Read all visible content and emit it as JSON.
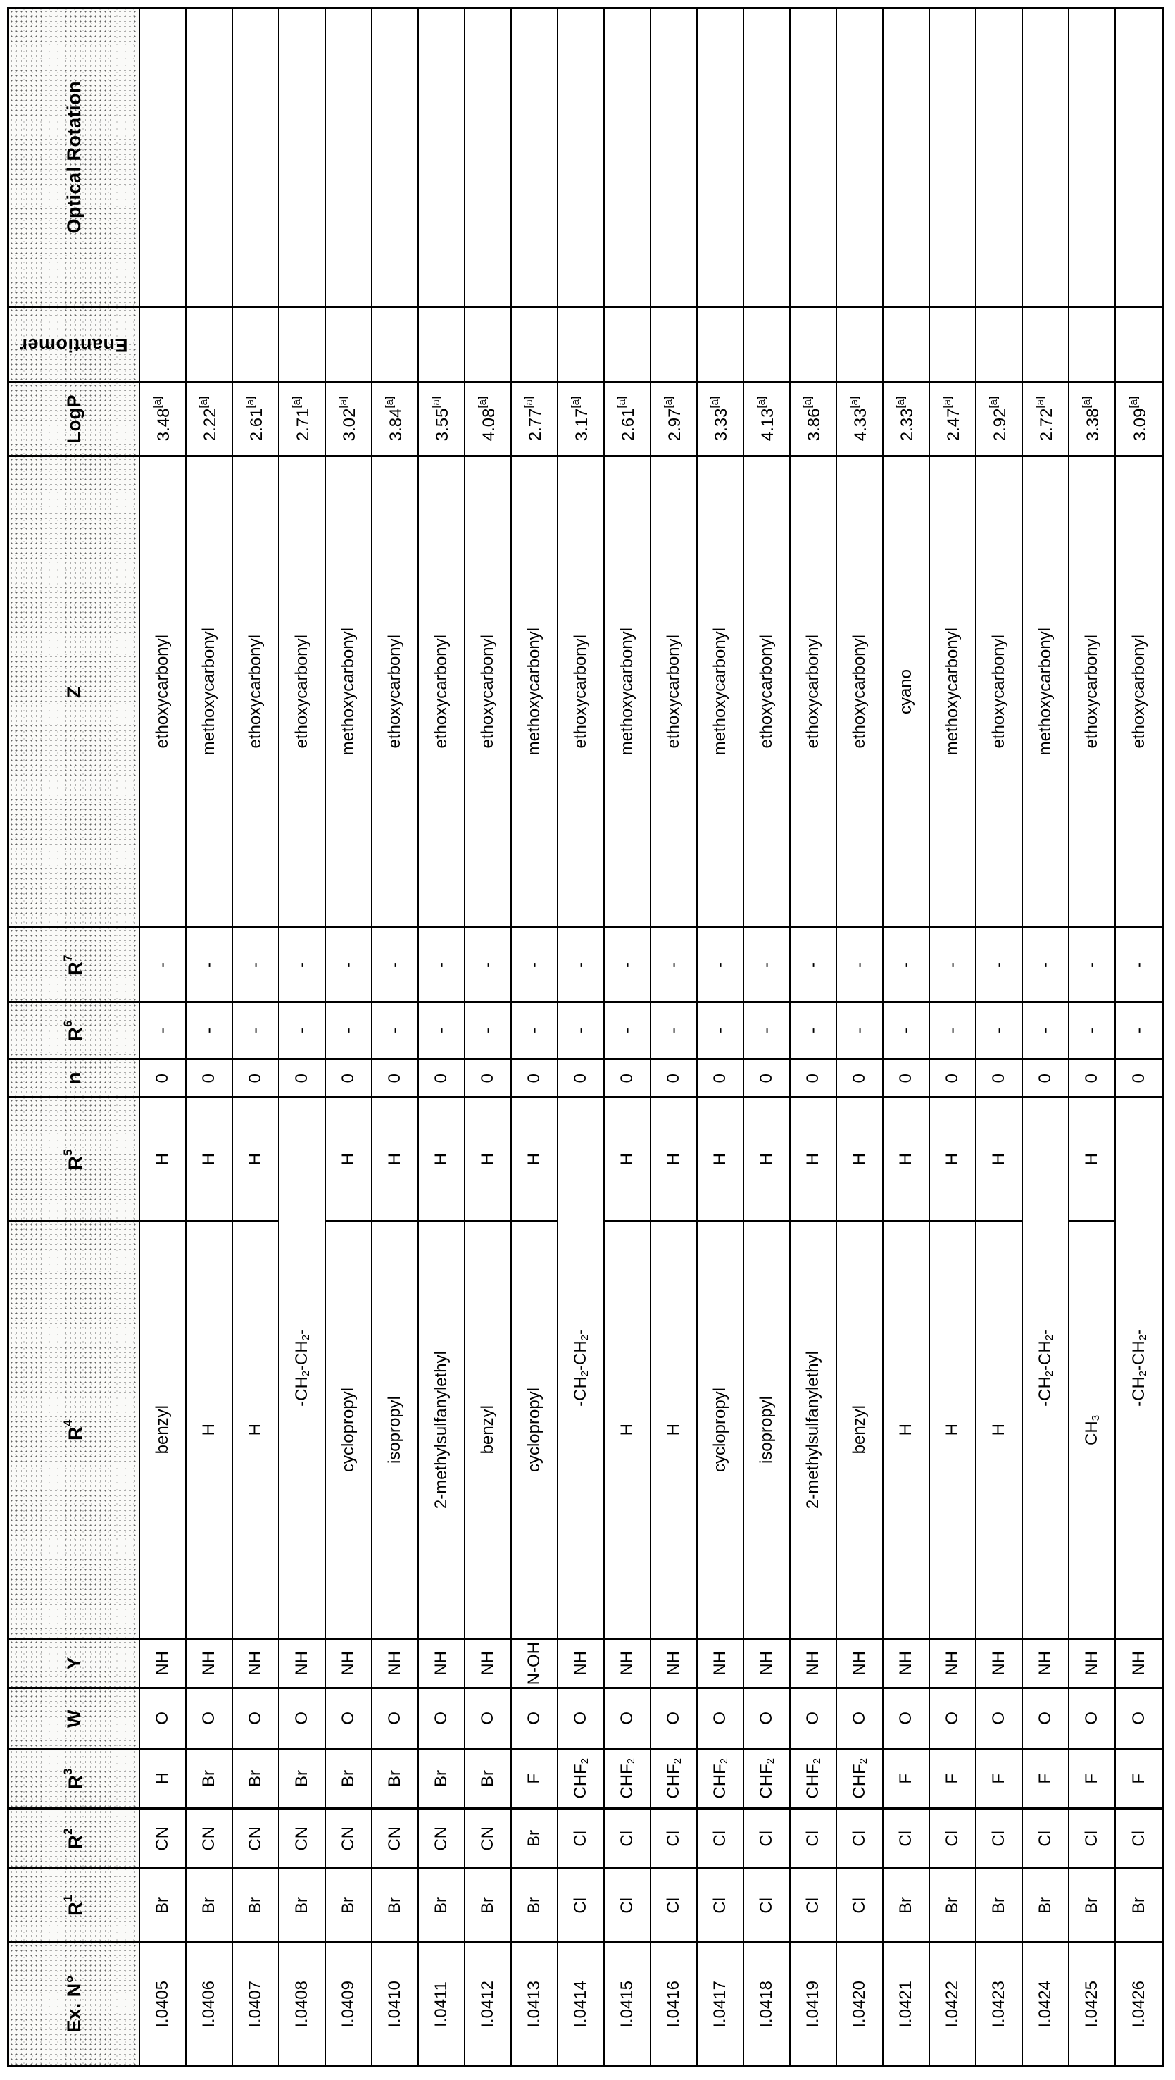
{
  "colors": {
    "line": "#000000",
    "page_background": "#ffffff",
    "header_fill": "#fafaf8"
  },
  "table": {
    "headers": [
      {
        "key": "optical",
        "label": "Optical Rotation"
      },
      {
        "key": "enantiomer",
        "label": "Enantiomer"
      },
      {
        "key": "logp",
        "label": "LogP"
      },
      {
        "key": "z",
        "label": "Z"
      },
      {
        "key": "r7",
        "label": "R^7^"
      },
      {
        "key": "r6",
        "label": "R^6^"
      },
      {
        "key": "n",
        "label": "n"
      },
      {
        "key": "r5",
        "label": "R^5^"
      },
      {
        "key": "r4",
        "label": "R^4^"
      },
      {
        "key": "y",
        "label": "Y"
      },
      {
        "key": "w",
        "label": "W"
      },
      {
        "key": "r3",
        "label": "R^3^"
      },
      {
        "key": "r2",
        "label": "R^2^"
      },
      {
        "key": "r1",
        "label": "R^1^"
      },
      {
        "key": "ex",
        "label": "Ex. N°"
      }
    ],
    "rows": [
      {
        "ex": "I.0405",
        "r1": "Br",
        "r2": "CN",
        "r3": "H",
        "w": "O",
        "y": "NH",
        "r4": "benzyl",
        "r5": "H",
        "n": "0",
        "r6": "-",
        "r7": "-",
        "z": "ethoxycarbonyl",
        "logp": "3.48^[a]^",
        "enantiomer": "",
        "optical": "",
        "r4_r5_merged": false
      },
      {
        "ex": "I.0406",
        "r1": "Br",
        "r2": "CN",
        "r3": "Br",
        "w": "O",
        "y": "NH",
        "r4": "H",
        "r5": "H",
        "n": "0",
        "r6": "-",
        "r7": "-",
        "z": "methoxycarbonyl",
        "logp": "2.22^[a]^",
        "enantiomer": "",
        "optical": "",
        "r4_r5_merged": false
      },
      {
        "ex": "I.0407",
        "r1": "Br",
        "r2": "CN",
        "r3": "Br",
        "w": "O",
        "y": "NH",
        "r4": "H",
        "r5": "H",
        "n": "0",
        "r6": "-",
        "r7": "-",
        "z": "ethoxycarbonyl",
        "logp": "2.61^[a]^",
        "enantiomer": "",
        "optical": "",
        "r4_r5_merged": false
      },
      {
        "ex": "I.0408",
        "r1": "Br",
        "r2": "CN",
        "r3": "Br",
        "w": "O",
        "y": "NH",
        "r4": "-CH~2~-CH~2~-",
        "r5": "",
        "n": "0",
        "r6": "-",
        "r7": "-",
        "z": "ethoxycarbonyl",
        "logp": "2.71^[a]^",
        "enantiomer": "",
        "optical": "",
        "r4_r5_merged": true
      },
      {
        "ex": "I.0409",
        "r1": "Br",
        "r2": "CN",
        "r3": "Br",
        "w": "O",
        "y": "NH",
        "r4": "cyclopropyl",
        "r5": "H",
        "n": "0",
        "r6": "-",
        "r7": "-",
        "z": "methoxycarbonyl",
        "logp": "3.02^[a]^",
        "enantiomer": "",
        "optical": "",
        "r4_r5_merged": false
      },
      {
        "ex": "I.0410",
        "r1": "Br",
        "r2": "CN",
        "r3": "Br",
        "w": "O",
        "y": "NH",
        "r4": "isopropyl",
        "r5": "H",
        "n": "0",
        "r6": "-",
        "r7": "-",
        "z": "ethoxycarbonyl",
        "logp": "3.84^[a]^",
        "enantiomer": "",
        "optical": "",
        "r4_r5_merged": false
      },
      {
        "ex": "I.0411",
        "r1": "Br",
        "r2": "CN",
        "r3": "Br",
        "w": "O",
        "y": "NH",
        "r4": "2-methylsulfanylethyl",
        "r5": "H",
        "n": "0",
        "r6": "-",
        "r7": "-",
        "z": "ethoxycarbonyl",
        "logp": "3.55^[a]^",
        "enantiomer": "",
        "optical": "",
        "r4_r5_merged": false
      },
      {
        "ex": "I.0412",
        "r1": "Br",
        "r2": "CN",
        "r3": "Br",
        "w": "O",
        "y": "NH",
        "r4": "benzyl",
        "r5": "H",
        "n": "0",
        "r6": "-",
        "r7": "-",
        "z": "ethoxycarbonyl",
        "logp": "4.08^[a]^",
        "enantiomer": "",
        "optical": "",
        "r4_r5_merged": false
      },
      {
        "ex": "I.0413",
        "r1": "Br",
        "r2": "Br",
        "r3": "F",
        "w": "O",
        "y": "N-OH",
        "r4": "cyclopropyl",
        "r5": "H",
        "n": "0",
        "r6": "-",
        "r7": "-",
        "z": "methoxycarbonyl",
        "logp": "2.77^[a]^",
        "enantiomer": "",
        "optical": "",
        "r4_r5_merged": false
      },
      {
        "ex": "I.0414",
        "r1": "Cl",
        "r2": "Cl",
        "r3": "CHF~2~",
        "w": "O",
        "y": "NH",
        "r4": "-CH~2~-CH~2~-",
        "r5": "",
        "n": "0",
        "r6": "-",
        "r7": "-",
        "z": "ethoxycarbonyl",
        "logp": "3.17^[a]^",
        "enantiomer": "",
        "optical": "",
        "r4_r5_merged": true
      },
      {
        "ex": "I.0415",
        "r1": "Cl",
        "r2": "Cl",
        "r3": "CHF~2~",
        "w": "O",
        "y": "NH",
        "r4": "H",
        "r5": "H",
        "n": "0",
        "r6": "-",
        "r7": "-",
        "z": "methoxycarbonyl",
        "logp": "2.61^[a]^",
        "enantiomer": "",
        "optical": "",
        "r4_r5_merged": false
      },
      {
        "ex": "I.0416",
        "r1": "Cl",
        "r2": "Cl",
        "r3": "CHF~2~",
        "w": "O",
        "y": "NH",
        "r4": "H",
        "r5": "H",
        "n": "0",
        "r6": "-",
        "r7": "-",
        "z": "ethoxycarbonyl",
        "logp": "2.97^[a]^",
        "enantiomer": "",
        "optical": "",
        "r4_r5_merged": false
      },
      {
        "ex": "I.0417",
        "r1": "Cl",
        "r2": "Cl",
        "r3": "CHF~2~",
        "w": "O",
        "y": "NH",
        "r4": "cyclopropyl",
        "r5": "H",
        "n": "0",
        "r6": "-",
        "r7": "-",
        "z": "methoxycarbonyl",
        "logp": "3.33^[a]^",
        "enantiomer": "",
        "optical": "",
        "r4_r5_merged": false
      },
      {
        "ex": "I.0418",
        "r1": "Cl",
        "r2": "Cl",
        "r3": "CHF~2~",
        "w": "O",
        "y": "NH",
        "r4": "isopropyl",
        "r5": "H",
        "n": "0",
        "r6": "-",
        "r7": "-",
        "z": "ethoxycarbonyl",
        "logp": "4.13^[a]^",
        "enantiomer": "",
        "optical": "",
        "r4_r5_merged": false
      },
      {
        "ex": "I.0419",
        "r1": "Cl",
        "r2": "Cl",
        "r3": "CHF~2~",
        "w": "O",
        "y": "NH",
        "r4": "2-methylsulfanylethyl",
        "r5": "H",
        "n": "0",
        "r6": "-",
        "r7": "-",
        "z": "ethoxycarbonyl",
        "logp": "3.86^[a]^",
        "enantiomer": "",
        "optical": "",
        "r4_r5_merged": false
      },
      {
        "ex": "I.0420",
        "r1": "Cl",
        "r2": "Cl",
        "r3": "CHF~2~",
        "w": "O",
        "y": "NH",
        "r4": "benzyl",
        "r5": "H",
        "n": "0",
        "r6": "-",
        "r7": "-",
        "z": "ethoxycarbonyl",
        "logp": "4.33^[a]^",
        "enantiomer": "",
        "optical": "",
        "r4_r5_merged": false
      },
      {
        "ex": "I.0421",
        "r1": "Br",
        "r2": "Cl",
        "r3": "F",
        "w": "O",
        "y": "NH",
        "r4": "H",
        "r5": "H",
        "n": "0",
        "r6": "-",
        "r7": "-",
        "z": "cyano",
        "logp": "2.33^[a]^",
        "enantiomer": "",
        "optical": "",
        "r4_r5_merged": false
      },
      {
        "ex": "I.0422",
        "r1": "Br",
        "r2": "Cl",
        "r3": "F",
        "w": "O",
        "y": "NH",
        "r4": "H",
        "r5": "H",
        "n": "0",
        "r6": "-",
        "r7": "-",
        "z": "methoxycarbonyl",
        "logp": "2.47^[a]^",
        "enantiomer": "",
        "optical": "",
        "r4_r5_merged": false
      },
      {
        "ex": "I.0423",
        "r1": "Br",
        "r2": "Cl",
        "r3": "F",
        "w": "O",
        "y": "NH",
        "r4": "H",
        "r5": "H",
        "n": "0",
        "r6": "-",
        "r7": "-",
        "z": "ethoxycarbonyl",
        "logp": "2.92^[a]^",
        "enantiomer": "",
        "optical": "",
        "r4_r5_merged": false
      },
      {
        "ex": "I.0424",
        "r1": "Br",
        "r2": "Cl",
        "r3": "F",
        "w": "O",
        "y": "NH",
        "r4": "-CH~2~-CH~2~-",
        "r5": "",
        "n": "0",
        "r6": "-",
        "r7": "-",
        "z": "methoxycarbonyl",
        "logp": "2.72^[a]^",
        "enantiomer": "",
        "optical": "",
        "r4_r5_merged": true
      },
      {
        "ex": "I.0425",
        "r1": "Br",
        "r2": "Cl",
        "r3": "F",
        "w": "O",
        "y": "NH",
        "r4": "CH~3~",
        "r5": "H",
        "n": "0",
        "r6": "-",
        "r7": "-",
        "z": "ethoxycarbonyl",
        "logp": "3.38^[a]^",
        "enantiomer": "",
        "optical": "",
        "r4_r5_merged": false
      },
      {
        "ex": "I.0426",
        "r1": "Br",
        "r2": "Cl",
        "r3": "F",
        "w": "O",
        "y": "NH",
        "r4": "-CH~2~-CH~2~-",
        "r5": "",
        "n": "0",
        "r6": "-",
        "r7": "-",
        "z": "ethoxycarbonyl",
        "logp": "3.09^[a]^",
        "enantiomer": "",
        "optical": "",
        "r4_r5_merged": true
      }
    ]
  }
}
